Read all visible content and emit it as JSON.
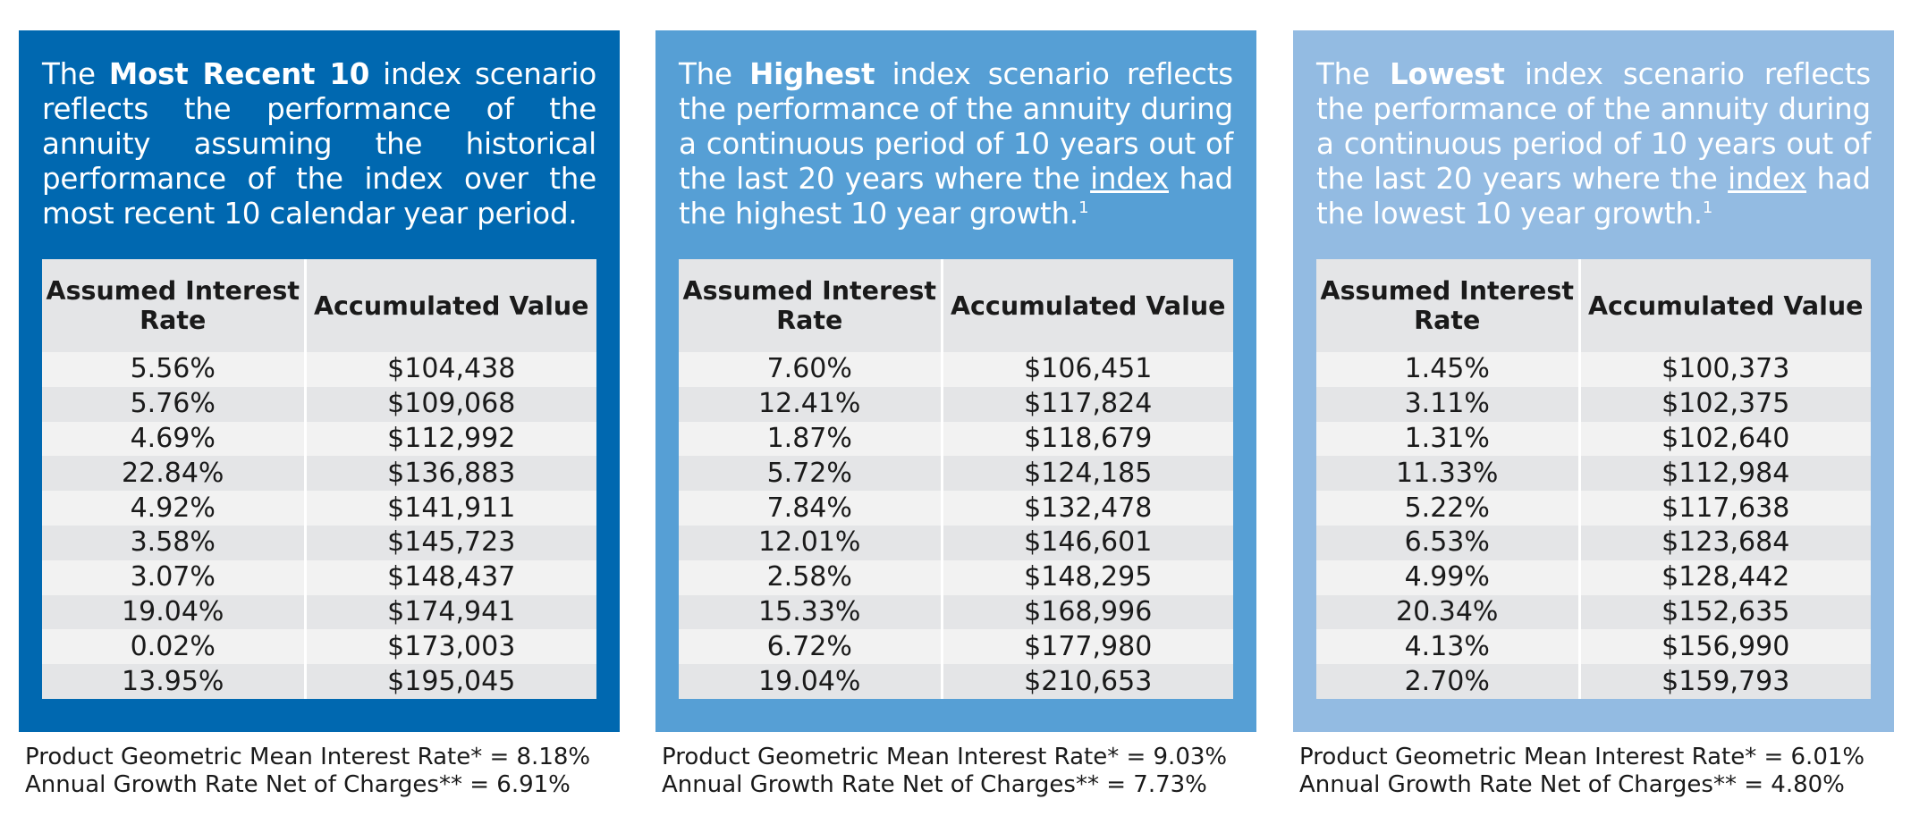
{
  "panels": [
    {
      "desc_prefix": "The ",
      "desc_bold": "Most Recent 10",
      "desc_mid": " index scenario reflects the performance of the annuity assuming the historical performance of the index over the most recent 10 calendar year period.",
      "col1_header": "Assumed Interest Rate",
      "col2_header": "Accumulated Value",
      "rows": [
        {
          "rate": "5.56%",
          "value": "$104,438"
        },
        {
          "rate": "5.76%",
          "value": "$109,068"
        },
        {
          "rate": "4.69%",
          "value": "$112,992"
        },
        {
          "rate": "22.84%",
          "value": "$136,883"
        },
        {
          "rate": "4.92%",
          "value": "$141,911"
        },
        {
          "rate": "3.58%",
          "value": "$145,723"
        },
        {
          "rate": "3.07%",
          "value": "$148,437"
        },
        {
          "rate": "19.04%",
          "value": "$174,941"
        },
        {
          "rate": "0.02%",
          "value": "$173,003"
        },
        {
          "rate": "13.95%",
          "value": "$195,045"
        }
      ],
      "footer_line1": "Product Geometric Mean Interest Rate* = 8.18%",
      "footer_line2": "Annual Growth Rate Net of Charges** = 6.91%"
    },
    {
      "desc_prefix": "The ",
      "desc_bold": "Highest",
      "desc_mid": " index scenario reflects the performance of the annuity during a continuous period of 10 years out of the last 20 years where the ",
      "desc_link": "index",
      "desc_suffix": " had the highest 10 year growth.",
      "desc_sup": "1",
      "col1_header": "Assumed Interest Rate",
      "col2_header": "Accumulated Value",
      "rows": [
        {
          "rate": "7.60%",
          "value": "$106,451"
        },
        {
          "rate": "12.41%",
          "value": "$117,824"
        },
        {
          "rate": "1.87%",
          "value": "$118,679"
        },
        {
          "rate": "5.72%",
          "value": "$124,185"
        },
        {
          "rate": "7.84%",
          "value": "$132,478"
        },
        {
          "rate": "12.01%",
          "value": "$146,601"
        },
        {
          "rate": "2.58%",
          "value": "$148,295"
        },
        {
          "rate": "15.33%",
          "value": "$168,996"
        },
        {
          "rate": "6.72%",
          "value": "$177,980"
        },
        {
          "rate": "19.04%",
          "value": "$210,653"
        }
      ],
      "footer_line1": "Product Geometric Mean Interest Rate* = 9.03%",
      "footer_line2": "Annual Growth Rate Net of Charges** = 7.73%"
    },
    {
      "desc_prefix": "The ",
      "desc_bold": "Lowest",
      "desc_mid": " index scenario reflects the performance of the annuity during a continuous period of 10 years out of the last 20 years where the ",
      "desc_link": "index",
      "desc_suffix": " had the lowest 10 year growth.",
      "desc_sup": "1",
      "col1_header": "Assumed Interest Rate",
      "col2_header": "Accumulated Value",
      "rows": [
        {
          "rate": "1.45%",
          "value": "$100,373"
        },
        {
          "rate": "3.11%",
          "value": "$102,375"
        },
        {
          "rate": "1.31%",
          "value": "$102,640"
        },
        {
          "rate": "11.33%",
          "value": "$112,984"
        },
        {
          "rate": "5.22%",
          "value": "$117,638"
        },
        {
          "rate": "6.53%",
          "value": "$123,684"
        },
        {
          "rate": "4.99%",
          "value": "$128,442"
        },
        {
          "rate": "20.34%",
          "value": "$152,635"
        },
        {
          "rate": "4.13%",
          "value": "$156,990"
        },
        {
          "rate": "2.70%",
          "value": "$159,793"
        }
      ],
      "footer_line1": "Product Geometric Mean Interest Rate* = 6.01%",
      "footer_line2": "Annual Growth Rate Net of Charges** = 4.80%"
    }
  ],
  "colors": {
    "panel_1_bg": "#0068b0",
    "panel_2_bg": "#569fd5",
    "panel_3_bg": "#93bbe2",
    "table_header_bg": "#e4e5e7",
    "table_row_light": "#f2f2f2",
    "table_row_dark": "#e4e5e7"
  }
}
